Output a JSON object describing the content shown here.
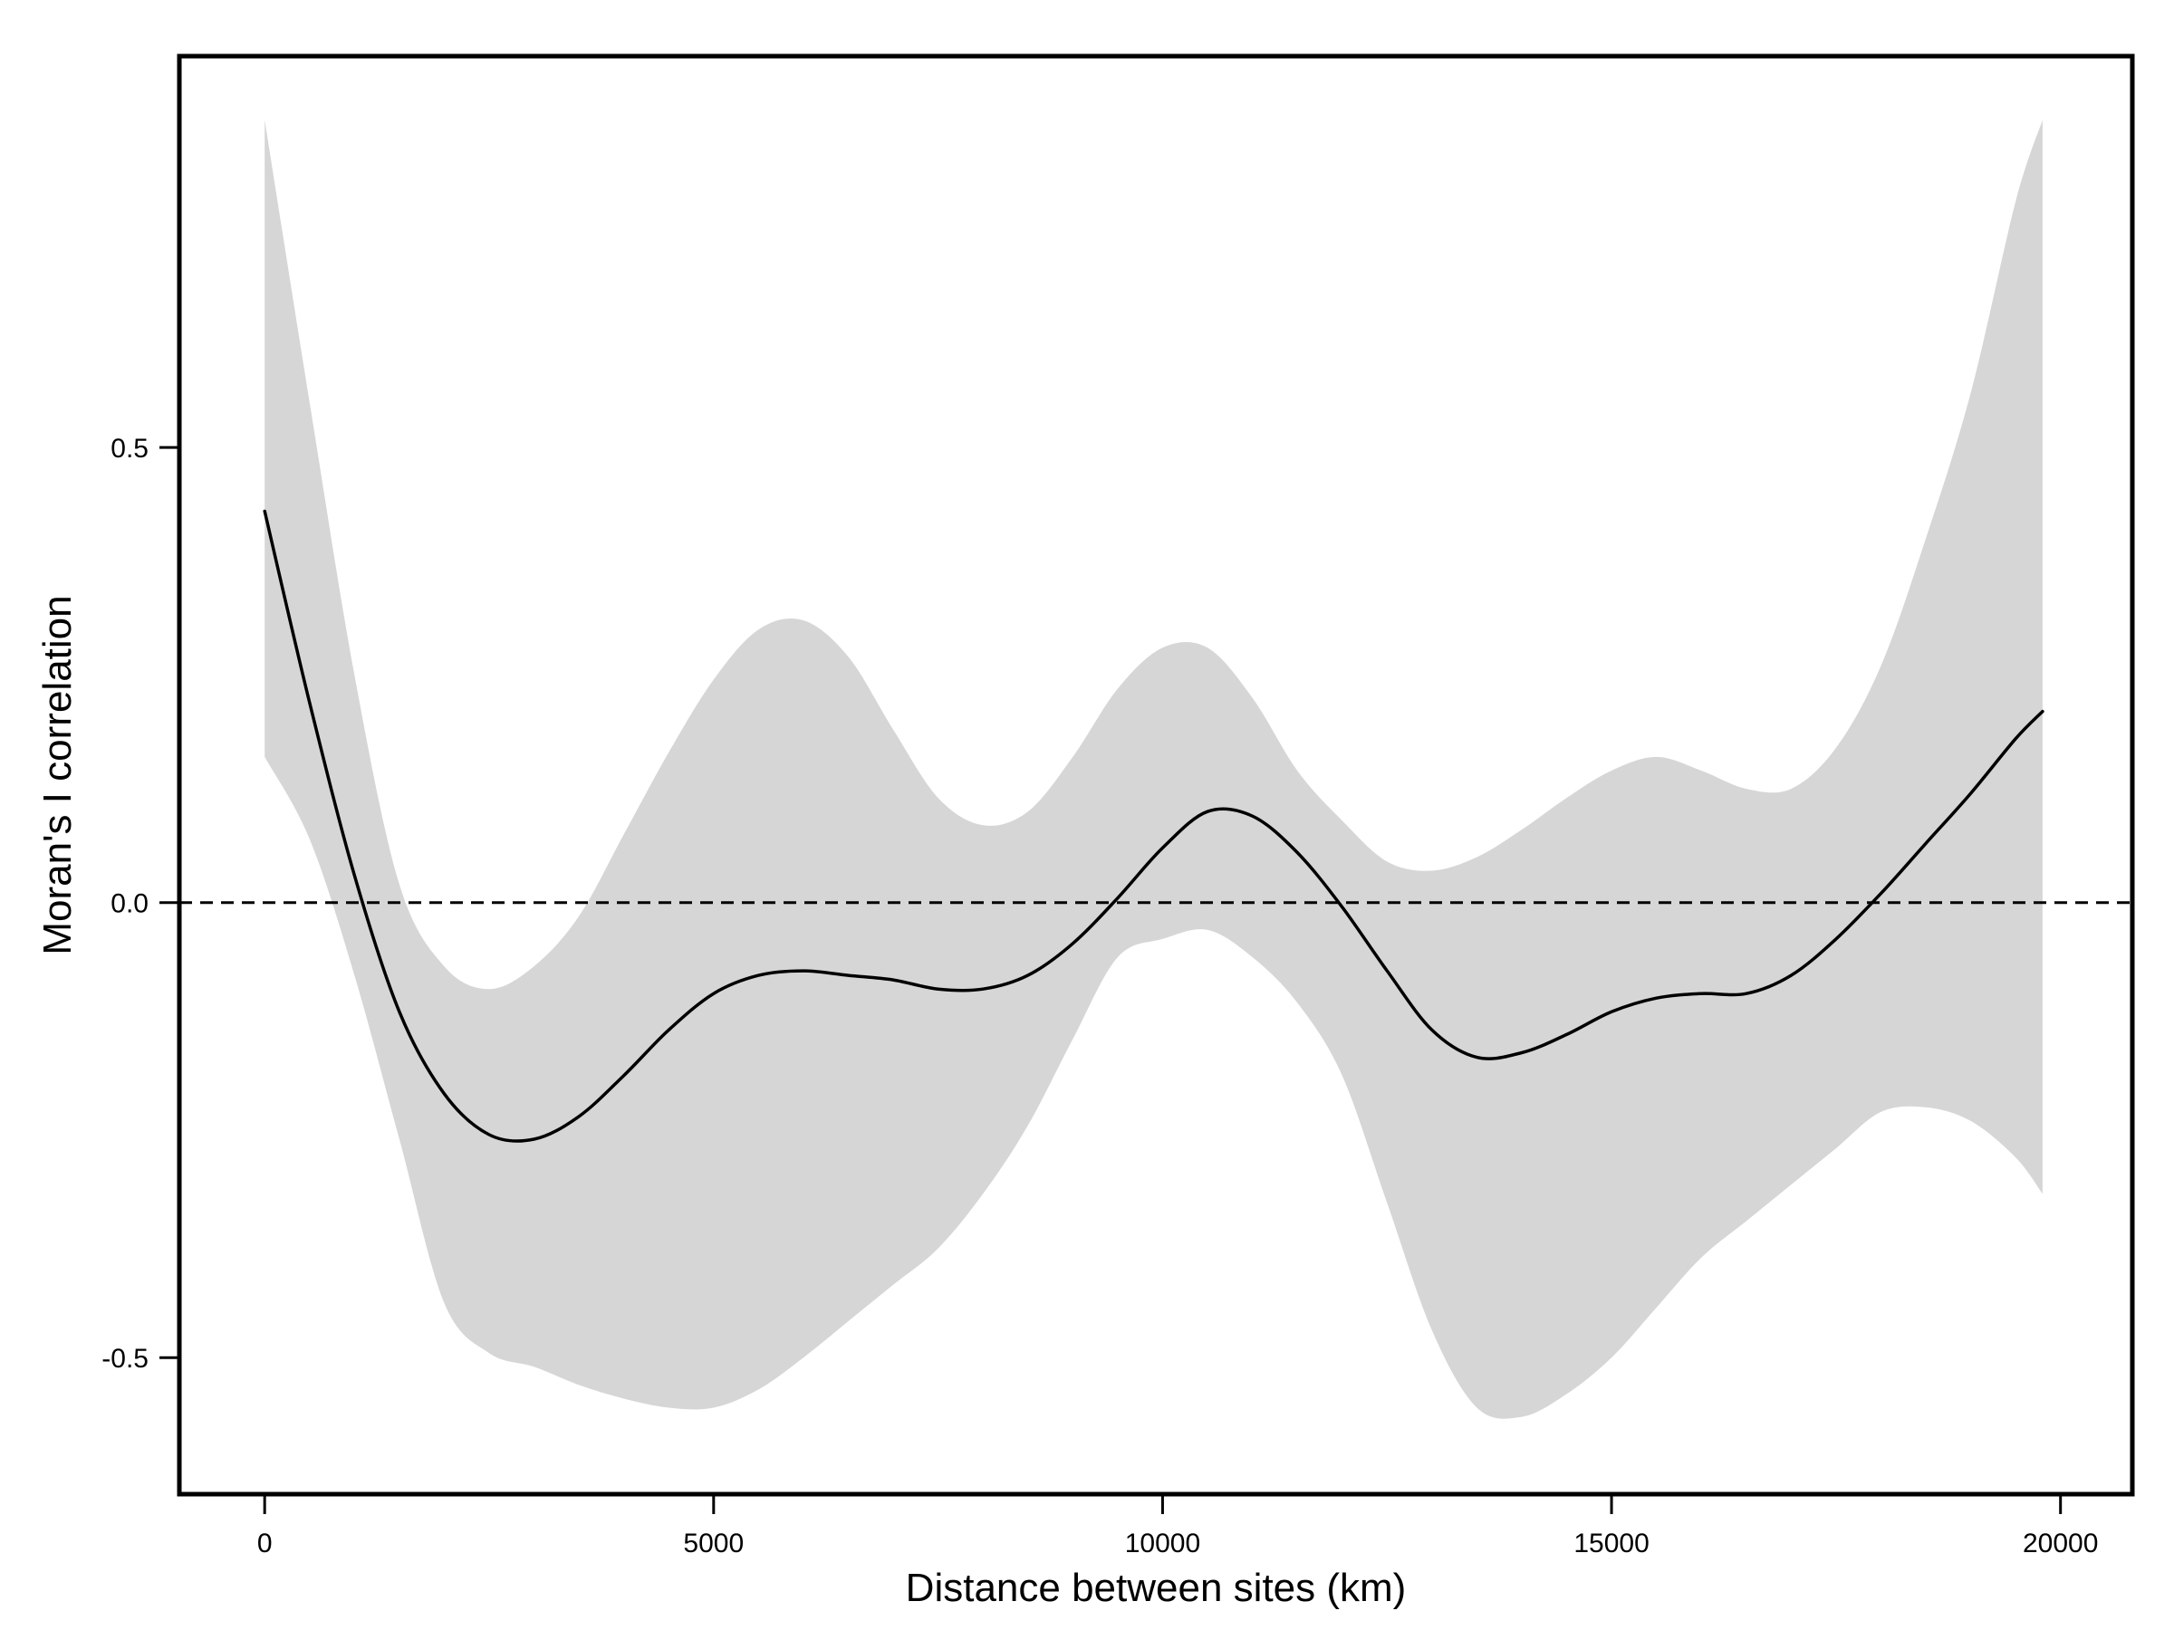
{
  "chart_data": {
    "type": "line",
    "title": "",
    "xlabel": "Distance between sites (km)",
    "ylabel": "Moran's I correlation",
    "xlim": [
      -950,
      20800
    ],
    "ylim": [
      -0.65,
      0.93
    ],
    "xticks": [
      0,
      5000,
      10000,
      15000,
      20000
    ],
    "yticks": [
      -0.5,
      0.0,
      0.5
    ],
    "xtick_labels": [
      "0",
      "5000",
      "10000",
      "15000",
      "20000"
    ],
    "ytick_labels": [
      "-0.5",
      "0.0",
      "0.5"
    ],
    "grid": false,
    "legend": "none",
    "reference_line": {
      "y": 0,
      "style": "dashed"
    },
    "series": [
      {
        "x": [
          0,
          500,
          1000,
          1500,
          2000,
          2500,
          3000,
          3500,
          4000,
          4500,
          5000,
          5500,
          6000,
          6500,
          7000,
          7500,
          8000,
          8500,
          9000,
          9500,
          10000,
          10500,
          11000,
          11500,
          12000,
          12500,
          13000,
          13500,
          14000,
          14500,
          15000,
          15500,
          16000,
          16500,
          17000,
          17500,
          18000,
          18500,
          19000,
          19500,
          19800
        ],
        "y": [
          0.43,
          0.22,
          0.03,
          -0.12,
          -0.21,
          -0.255,
          -0.26,
          -0.235,
          -0.19,
          -0.14,
          -0.1,
          -0.08,
          -0.075,
          -0.08,
          -0.085,
          -0.095,
          -0.095,
          -0.08,
          -0.045,
          0.005,
          0.06,
          0.1,
          0.095,
          0.055,
          -0.005,
          -0.075,
          -0.14,
          -0.17,
          -0.165,
          -0.145,
          -0.12,
          -0.105,
          -0.1,
          -0.1,
          -0.08,
          -0.04,
          0.01,
          0.065,
          0.12,
          0.18,
          0.21
        ],
        "ci_upper": [
          0.86,
          0.55,
          0.25,
          0.02,
          -0.07,
          -0.095,
          -0.07,
          -0.015,
          0.075,
          0.165,
          0.245,
          0.3,
          0.31,
          0.27,
          0.19,
          0.115,
          0.085,
          0.1,
          0.16,
          0.235,
          0.28,
          0.28,
          0.225,
          0.145,
          0.09,
          0.045,
          0.035,
          0.05,
          0.08,
          0.115,
          0.145,
          0.16,
          0.145,
          0.125,
          0.125,
          0.17,
          0.26,
          0.4,
          0.56,
          0.77,
          0.86
        ],
        "ci_lower": [
          0.16,
          0.07,
          -0.08,
          -0.26,
          -0.44,
          -0.495,
          -0.51,
          -0.53,
          -0.545,
          -0.555,
          -0.555,
          -0.535,
          -0.5,
          -0.46,
          -0.42,
          -0.38,
          -0.32,
          -0.245,
          -0.15,
          -0.06,
          -0.04,
          -0.03,
          -0.06,
          -0.11,
          -0.19,
          -0.33,
          -0.47,
          -0.555,
          -0.565,
          -0.54,
          -0.5,
          -0.445,
          -0.39,
          -0.35,
          -0.31,
          -0.27,
          -0.23,
          -0.225,
          -0.24,
          -0.28,
          -0.32
        ]
      }
    ]
  }
}
